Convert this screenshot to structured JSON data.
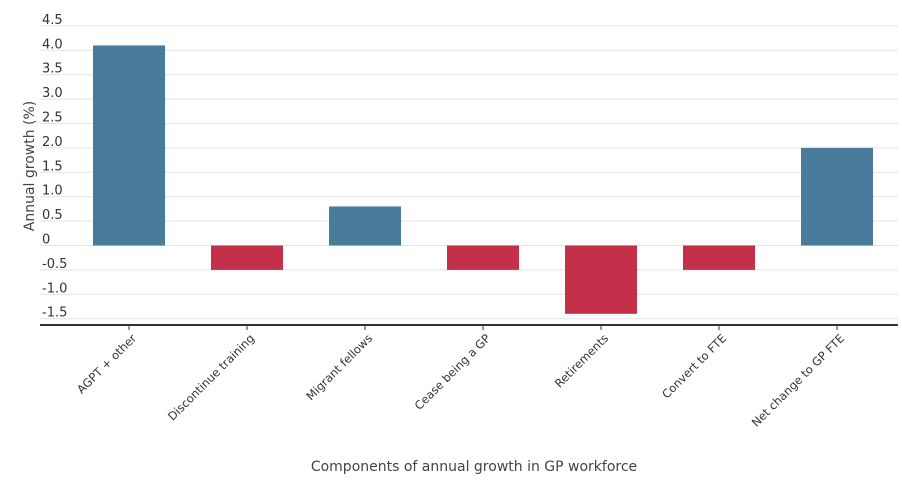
{
  "chart_data": {
    "type": "bar",
    "title": "",
    "xlabel": "Components of annual growth in GP workforce",
    "ylabel": "Annual growth (%)",
    "categories": [
      "AGPT + other",
      "Discontinue training",
      "Migrant fellows",
      "Cease being a GP",
      "Retirements",
      "Convert to FTE",
      "Net change to GP FTE"
    ],
    "values": [
      4.1,
      -0.5,
      0.8,
      -0.5,
      -1.4,
      -0.5,
      2.0
    ],
    "ylim": [
      -1.6,
      4.5
    ],
    "yticks": [
      4.5,
      4.0,
      3.5,
      3.0,
      2.5,
      2.0,
      1.5,
      1.0,
      0.5,
      0,
      -0.5,
      -1.0,
      -1.5
    ],
    "ytick_labels": [
      "4.5",
      "4.0",
      "3.5",
      "3.0",
      "2.5",
      "2.0",
      "1.5",
      "1.0",
      "0.5",
      "0",
      "-0.5",
      "-1.0",
      "-1.5"
    ],
    "grid": true,
    "legend": "none",
    "colors": {
      "positive": "#4a7a9c",
      "negative": "#c4304a",
      "axis": "#333333",
      "grid": "#e3e3e3"
    }
  }
}
